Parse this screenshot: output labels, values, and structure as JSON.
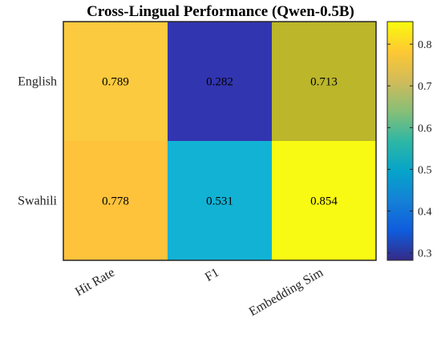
{
  "chart_data": {
    "type": "heatmap",
    "title": "Cross-Lingual Performance (Qwen-0.5B)",
    "x_categories": [
      "Hit Rate",
      "F1",
      "Embedding Sim"
    ],
    "y_categories": [
      "English",
      "Swahili"
    ],
    "values": [
      [
        0.789,
        0.282,
        0.713
      ],
      [
        0.778,
        0.531,
        0.854
      ]
    ],
    "value_labels": [
      [
        "0.789",
        "0.282",
        "0.713"
      ],
      [
        "0.778",
        "0.531",
        "0.854"
      ]
    ],
    "colormap": "parula",
    "colors": [
      [
        "#FCCA3E",
        "#3235B0",
        "#BBB62A"
      ],
      [
        "#FEC23B",
        "#12B2D5",
        "#F9FA14"
      ]
    ],
    "colorbar": {
      "range": [
        0.282,
        0.854
      ],
      "ticks": [
        0.3,
        0.4,
        0.5,
        0.6,
        0.7,
        0.8
      ],
      "tick_labels": [
        "0.3",
        "0.4",
        "0.5",
        "0.6",
        "0.7",
        "0.8"
      ],
      "position": "right"
    }
  }
}
